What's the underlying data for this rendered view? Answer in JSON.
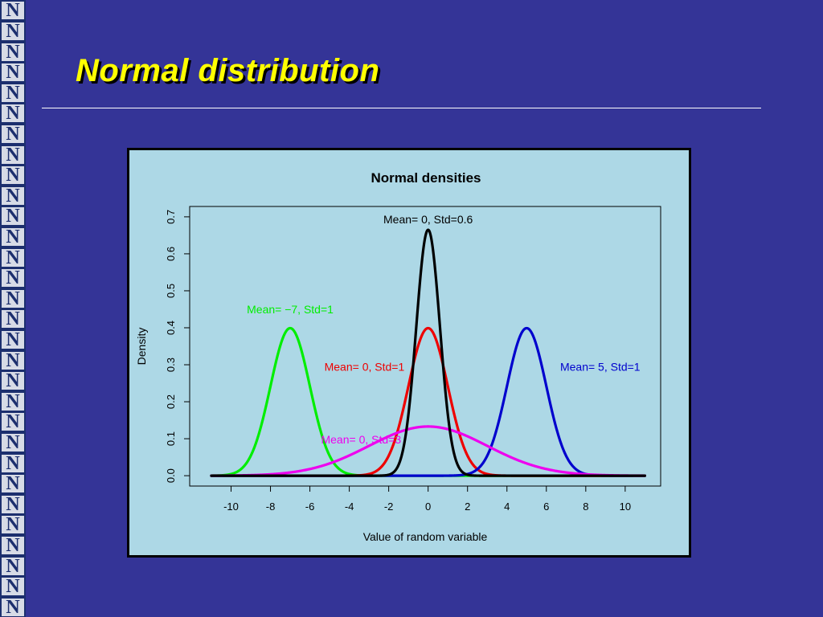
{
  "slide": {
    "title": "Normal distribution",
    "logo_letter": "N",
    "title_color": "#ffff00",
    "background_color": "#343497"
  },
  "chart_data": {
    "type": "line",
    "title": "Normal densities",
    "xlabel": "Value of random variable",
    "ylabel": "Density",
    "xlim": [
      -11,
      11
    ],
    "ylim": [
      0,
      0.7
    ],
    "x_ticks": [
      "-10",
      "-8",
      "-6",
      "-4",
      "-2",
      "0",
      "2",
      "4",
      "6",
      "8",
      "10"
    ],
    "y_ticks": [
      "0.0",
      "0.1",
      "0.2",
      "0.3",
      "0.4",
      "0.5",
      "0.6",
      "0.7"
    ],
    "background": "#add8e6",
    "series": [
      {
        "name": "Mean= −7, Std=1",
        "mean": -7,
        "std": 1,
        "color": "#00ee00",
        "label_anchor": [
          -7,
          0.45
        ],
        "label_align": "middle"
      },
      {
        "name": "Mean= 0, Std=1",
        "mean": 0,
        "std": 1,
        "color": "#ee0000",
        "label_anchor": [
          -1.2,
          0.295
        ],
        "label_align": "end"
      },
      {
        "name": "Mean= 5, Std=1",
        "mean": 5,
        "std": 1,
        "color": "#0000cd",
        "label_anchor": [
          6.7,
          0.295
        ],
        "label_align": "start"
      },
      {
        "name": "Mean= 0, Std=3",
        "mean": 0,
        "std": 3,
        "color": "#ee00ee",
        "label_anchor": [
          -3.4,
          0.098
        ],
        "label_align": "middle"
      },
      {
        "name": "Mean= 0, Std=0.6",
        "mean": 0,
        "std": 0.6,
        "color": "#000000",
        "label_anchor": [
          0,
          0.693
        ],
        "label_align": "middle"
      }
    ]
  }
}
